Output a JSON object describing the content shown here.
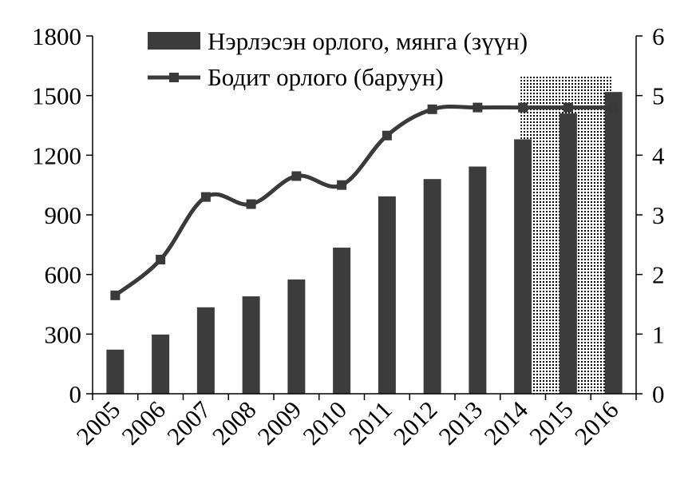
{
  "chart_data": {
    "type": "bar",
    "categories": [
      "2005",
      "2006",
      "2007",
      "2008",
      "2009",
      "2010",
      "2011",
      "2012",
      "2013",
      "2014",
      "2015",
      "2016"
    ],
    "series": [
      {
        "name": "Нэрлэсэн орлого, мянга (зүүн)",
        "type": "bar",
        "axis": "left",
        "values": [
          222,
          298,
          435,
          490,
          575,
          735,
          993,
          1080,
          1143,
          1280,
          1410,
          1518
        ]
      },
      {
        "name": "Бодит орлого (баруун)",
        "type": "line",
        "axis": "right",
        "values": [
          1.65,
          2.25,
          3.3,
          3.18,
          3.65,
          3.5,
          4.33,
          4.77,
          4.8,
          4.8,
          4.8,
          4.8
        ]
      }
    ],
    "y_left": {
      "ticks": [
        0,
        300,
        600,
        900,
        1200,
        1500,
        1800
      ],
      "ylim": [
        0,
        1800
      ]
    },
    "y_right": {
      "ticks": [
        0,
        1,
        2,
        3,
        4,
        5,
        6
      ],
      "ylim": [
        0,
        6
      ]
    },
    "forecast_shaded_categories": [
      "2015",
      "2016"
    ],
    "legend_position": "top-center",
    "grid": false,
    "colors": {
      "bars": "#3c3c3c",
      "line": "#3a3a3a",
      "axis": "#000000"
    }
  }
}
